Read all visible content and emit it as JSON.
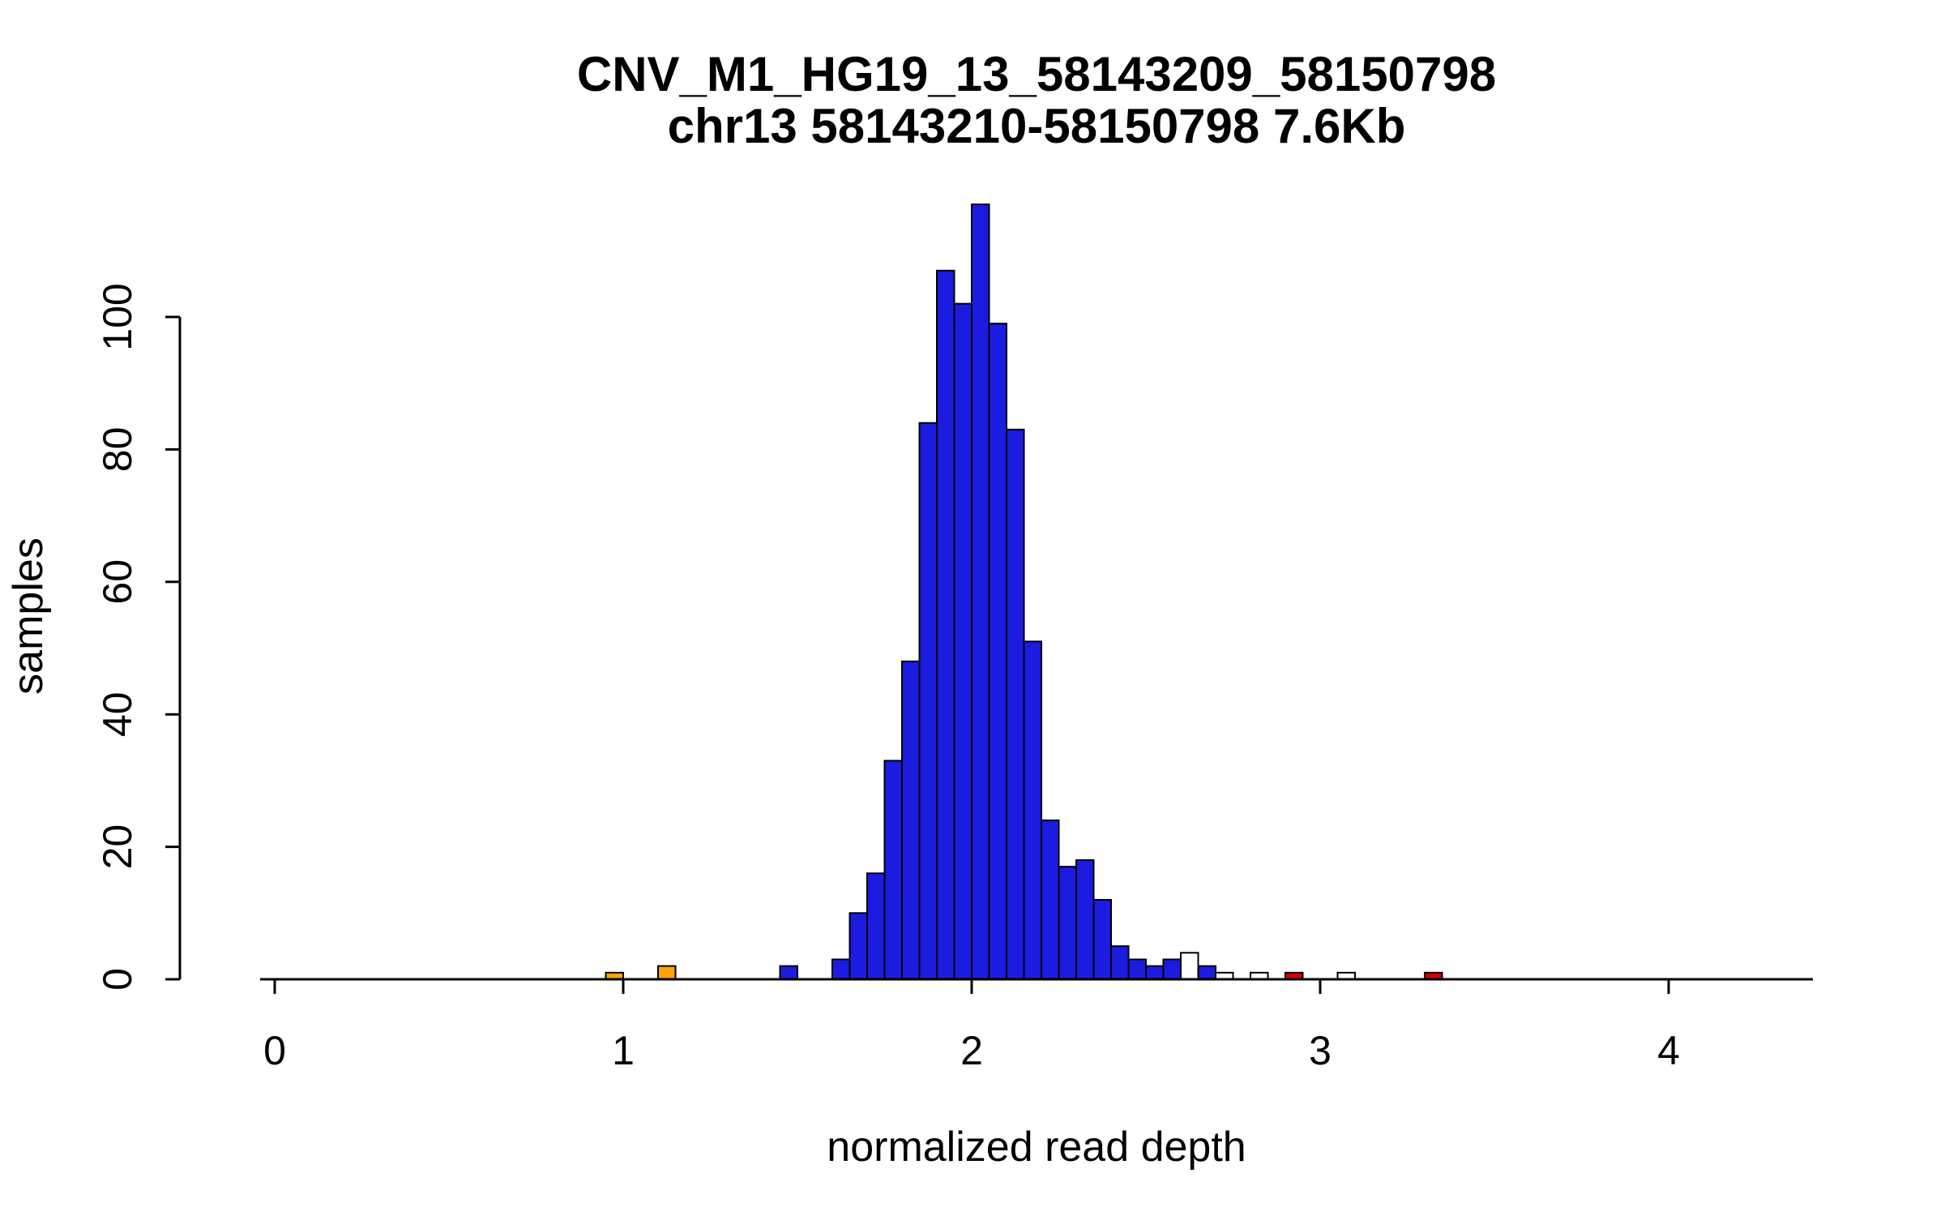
{
  "chart_data": {
    "type": "bar",
    "title": "CNV_M1_HG19_13_58143209_58150798",
    "subtitle": "chr13 58143210-58150798 7.6Kb",
    "xlabel": "normalized read depth",
    "ylabel": "samples",
    "xlim": [
      0,
      4.4
    ],
    "ylim": [
      0,
      117
    ],
    "xticks": [
      0,
      1,
      2,
      3,
      4
    ],
    "yticks": [
      0,
      20,
      40,
      60,
      80,
      100
    ],
    "grid": false,
    "legend": "none",
    "bin_width": 0.05,
    "colors": {
      "blue": "#1c1ce0",
      "orange": "#ffa500",
      "red": "#d40000",
      "white": "#ffffff",
      "bar_border": "#000000",
      "axis": "#000000",
      "background": "#ffffff"
    },
    "bins": [
      {
        "x": 0.95,
        "count": 1,
        "color": "orange"
      },
      {
        "x": 1.1,
        "count": 2,
        "color": "orange"
      },
      {
        "x": 1.45,
        "count": 2,
        "color": "blue"
      },
      {
        "x": 1.6,
        "count": 3,
        "color": "blue"
      },
      {
        "x": 1.65,
        "count": 10,
        "color": "blue"
      },
      {
        "x": 1.7,
        "count": 16,
        "color": "blue"
      },
      {
        "x": 1.75,
        "count": 33,
        "color": "blue"
      },
      {
        "x": 1.8,
        "count": 48,
        "color": "blue"
      },
      {
        "x": 1.85,
        "count": 84,
        "color": "blue"
      },
      {
        "x": 1.9,
        "count": 107,
        "color": "blue"
      },
      {
        "x": 1.95,
        "count": 102,
        "color": "blue"
      },
      {
        "x": 2.0,
        "count": 117,
        "color": "blue"
      },
      {
        "x": 2.05,
        "count": 99,
        "color": "blue"
      },
      {
        "x": 2.1,
        "count": 83,
        "color": "blue"
      },
      {
        "x": 2.15,
        "count": 51,
        "color": "blue"
      },
      {
        "x": 2.2,
        "count": 24,
        "color": "blue"
      },
      {
        "x": 2.25,
        "count": 17,
        "color": "blue"
      },
      {
        "x": 2.3,
        "count": 18,
        "color": "blue"
      },
      {
        "x": 2.35,
        "count": 12,
        "color": "blue"
      },
      {
        "x": 2.4,
        "count": 5,
        "color": "blue"
      },
      {
        "x": 2.45,
        "count": 3,
        "color": "blue"
      },
      {
        "x": 2.5,
        "count": 2,
        "color": "blue"
      },
      {
        "x": 2.55,
        "count": 3,
        "color": "blue"
      },
      {
        "x": 2.6,
        "count": 4,
        "color": "white"
      },
      {
        "x": 2.65,
        "count": 2,
        "color": "blue"
      },
      {
        "x": 2.7,
        "count": 1,
        "color": "white"
      },
      {
        "x": 2.8,
        "count": 1,
        "color": "white"
      },
      {
        "x": 2.9,
        "count": 1,
        "color": "red"
      },
      {
        "x": 3.05,
        "count": 1,
        "color": "white"
      },
      {
        "x": 3.3,
        "count": 1,
        "color": "red"
      }
    ]
  }
}
